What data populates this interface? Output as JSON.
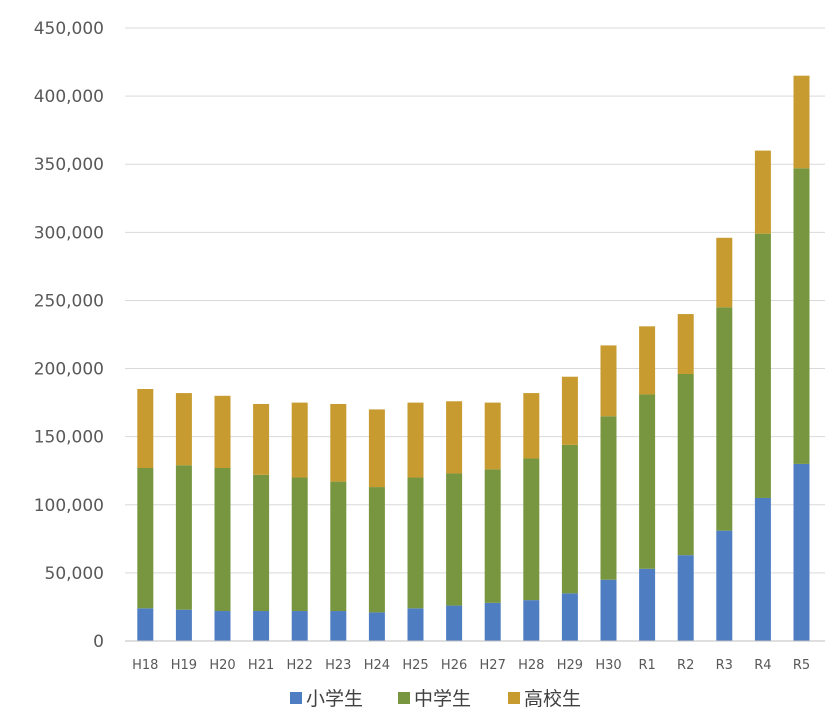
{
  "chart_data": {
    "type": "bar",
    "stacked": true,
    "categories": [
      "H18",
      "H19",
      "H20",
      "H21",
      "H22",
      "H23",
      "H24",
      "H25",
      "H26",
      "H27",
      "H28",
      "H29",
      "H30",
      "R1",
      "R2",
      "R3",
      "R4",
      "R5"
    ],
    "series": [
      {
        "name": "小学生",
        "color": "#4f7dc2",
        "values": [
          24000,
          23000,
          22000,
          22000,
          22000,
          22000,
          21000,
          24000,
          26000,
          28000,
          30000,
          35000,
          45000,
          53000,
          63000,
          81000,
          105000,
          130000
        ]
      },
      {
        "name": "中学生",
        "color": "#78963f",
        "values": [
          103000,
          106000,
          105000,
          100000,
          98000,
          95000,
          92000,
          96000,
          97000,
          98000,
          104000,
          109000,
          120000,
          128000,
          133000,
          164000,
          194000,
          217000
        ]
      },
      {
        "name": "高校生",
        "color": "#c79b2f",
        "values": [
          58000,
          53000,
          53000,
          52000,
          55000,
          57000,
          57000,
          55000,
          53000,
          49000,
          48000,
          50000,
          52000,
          50000,
          44000,
          51000,
          61000,
          68000
        ]
      }
    ],
    "yticks": [
      "0",
      "50,000",
      "100,000",
      "150,000",
      "200,000",
      "250,000",
      "300,000",
      "350,000",
      "400,000",
      "450,000"
    ],
    "ylim": [
      0,
      450000
    ],
    "grid": true,
    "legend_position": "bottom"
  }
}
